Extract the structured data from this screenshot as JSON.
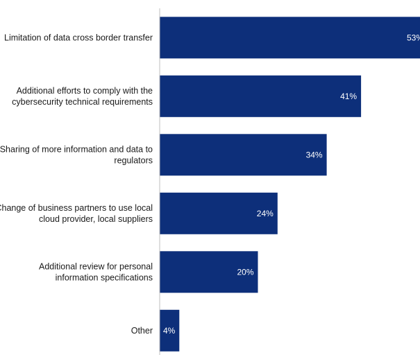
{
  "colors": {
    "bar": "#0d2f7a",
    "axis": "#bfbfbf",
    "text": "#1a1a1a",
    "value_text": "#ffffff"
  },
  "chart_data": {
    "type": "bar",
    "orientation": "horizontal",
    "categories": [
      "Limitation of data cross border transfer",
      "Additional efforts to comply with the cybersecurity technical requirements",
      "Sharing of more information and data to regulators",
      "Change of business partners to use local cloud provider, local suppliers",
      "Additional review for personal information specifications",
      "Other"
    ],
    "category_lines": [
      [
        "Limitation of data cross border transfer"
      ],
      [
        "Additional efforts to comply with the",
        "cybersecurity technical requirements"
      ],
      [
        "Sharing of more information and data to",
        "regulators"
      ],
      [
        "Change of business partners to use local",
        "cloud provider, local suppliers"
      ],
      [
        "Additional review for personal",
        "information specifications"
      ],
      [
        "Other"
      ]
    ],
    "values": [
      53,
      41,
      34,
      24,
      20,
      4
    ],
    "value_labels": [
      "53%",
      "41%",
      "34%",
      "24%",
      "20%",
      "4%"
    ],
    "title": "",
    "xlabel": "",
    "ylabel": "",
    "xlim": [
      0,
      53
    ],
    "grid": false,
    "legend": "none"
  }
}
